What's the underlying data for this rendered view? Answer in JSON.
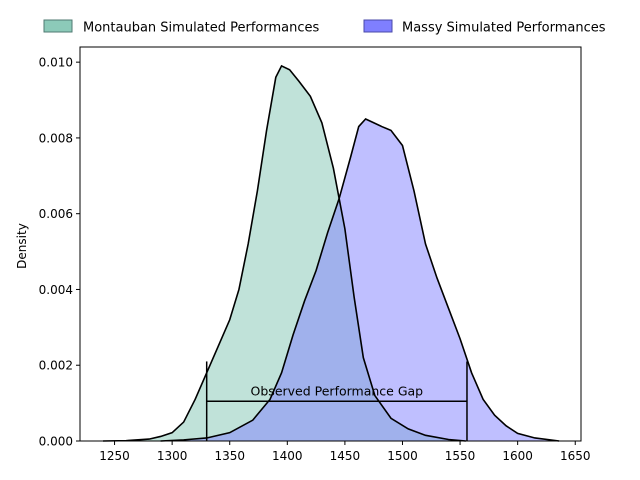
{
  "chart_data": {
    "type": "area",
    "title": "",
    "xlabel": "",
    "ylabel": "Density",
    "xlim": [
      1220,
      1655
    ],
    "ylim": [
      0,
      0.0104
    ],
    "x_ticks": [
      1250,
      1300,
      1350,
      1400,
      1450,
      1500,
      1550,
      1600,
      1650
    ],
    "y_ticks": [
      0.0,
      0.002,
      0.004,
      0.006,
      0.008,
      0.01
    ],
    "x_tick_labels": [
      "1250",
      "1300",
      "1350",
      "1400",
      "1450",
      "1500",
      "1550",
      "1600",
      "1650"
    ],
    "y_tick_labels": [
      "0.000",
      "0.002",
      "0.004",
      "0.006",
      "0.008",
      "0.010"
    ],
    "grid": false,
    "legend": {
      "placement": "top",
      "items": [
        {
          "label": "Montauban Simulated Performances",
          "color": "#8ccab9"
        },
        {
          "label": "Massy Simulated Performances",
          "color": "#7f7fff"
        }
      ]
    },
    "series": [
      {
        "name": "Montauban Simulated Performances",
        "fill": "#8ccab9",
        "fill_opacity": 0.55,
        "points": [
          [
            1240,
            0.0
          ],
          [
            1260,
            1e-05
          ],
          [
            1280,
            5e-05
          ],
          [
            1290,
            0.00012
          ],
          [
            1300,
            0.00022
          ],
          [
            1310,
            0.0005
          ],
          [
            1320,
            0.0011
          ],
          [
            1330,
            0.0018
          ],
          [
            1340,
            0.0025
          ],
          [
            1350,
            0.0032
          ],
          [
            1358,
            0.004
          ],
          [
            1366,
            0.0052
          ],
          [
            1374,
            0.0066
          ],
          [
            1382,
            0.0082
          ],
          [
            1390,
            0.0096
          ],
          [
            1395,
            0.0099
          ],
          [
            1402,
            0.0098
          ],
          [
            1410,
            0.0095
          ],
          [
            1420,
            0.0091
          ],
          [
            1430,
            0.0084
          ],
          [
            1440,
            0.0072
          ],
          [
            1450,
            0.0056
          ],
          [
            1458,
            0.0038
          ],
          [
            1466,
            0.0022
          ],
          [
            1476,
            0.0012
          ],
          [
            1490,
            0.0006
          ],
          [
            1505,
            0.00032
          ],
          [
            1520,
            0.00015
          ],
          [
            1540,
            4e-05
          ],
          [
            1555,
            0.0
          ]
        ]
      },
      {
        "name": "Massy Simulated Performances",
        "fill": "#7f7fff",
        "fill_opacity": 0.5,
        "points": [
          [
            1290,
            0.0
          ],
          [
            1310,
            3e-05
          ],
          [
            1330,
            8e-05
          ],
          [
            1350,
            0.00022
          ],
          [
            1370,
            0.00055
          ],
          [
            1385,
            0.0011
          ],
          [
            1395,
            0.0018
          ],
          [
            1405,
            0.0028
          ],
          [
            1415,
            0.0037
          ],
          [
            1425,
            0.0045
          ],
          [
            1435,
            0.0055
          ],
          [
            1445,
            0.0064
          ],
          [
            1455,
            0.0075
          ],
          [
            1462,
            0.0083
          ],
          [
            1468,
            0.0085
          ],
          [
            1475,
            0.0084
          ],
          [
            1482,
            0.0083
          ],
          [
            1490,
            0.0082
          ],
          [
            1500,
            0.0078
          ],
          [
            1510,
            0.0066
          ],
          [
            1520,
            0.0052
          ],
          [
            1530,
            0.0043
          ],
          [
            1540,
            0.0035
          ],
          [
            1550,
            0.0027
          ],
          [
            1560,
            0.0018
          ],
          [
            1570,
            0.0011
          ],
          [
            1580,
            0.00068
          ],
          [
            1590,
            0.0004
          ],
          [
            1600,
            0.0002
          ],
          [
            1615,
            8e-05
          ],
          [
            1636,
            0.0
          ]
        ]
      }
    ],
    "annotation": {
      "text": "Observed Performance Gap",
      "x_start": 1330,
      "x_end": 1556,
      "y_level": 0.00105,
      "cap_top_left": 0.0021,
      "cap_top_right": 0.0021,
      "text_y": 0.0012
    }
  }
}
